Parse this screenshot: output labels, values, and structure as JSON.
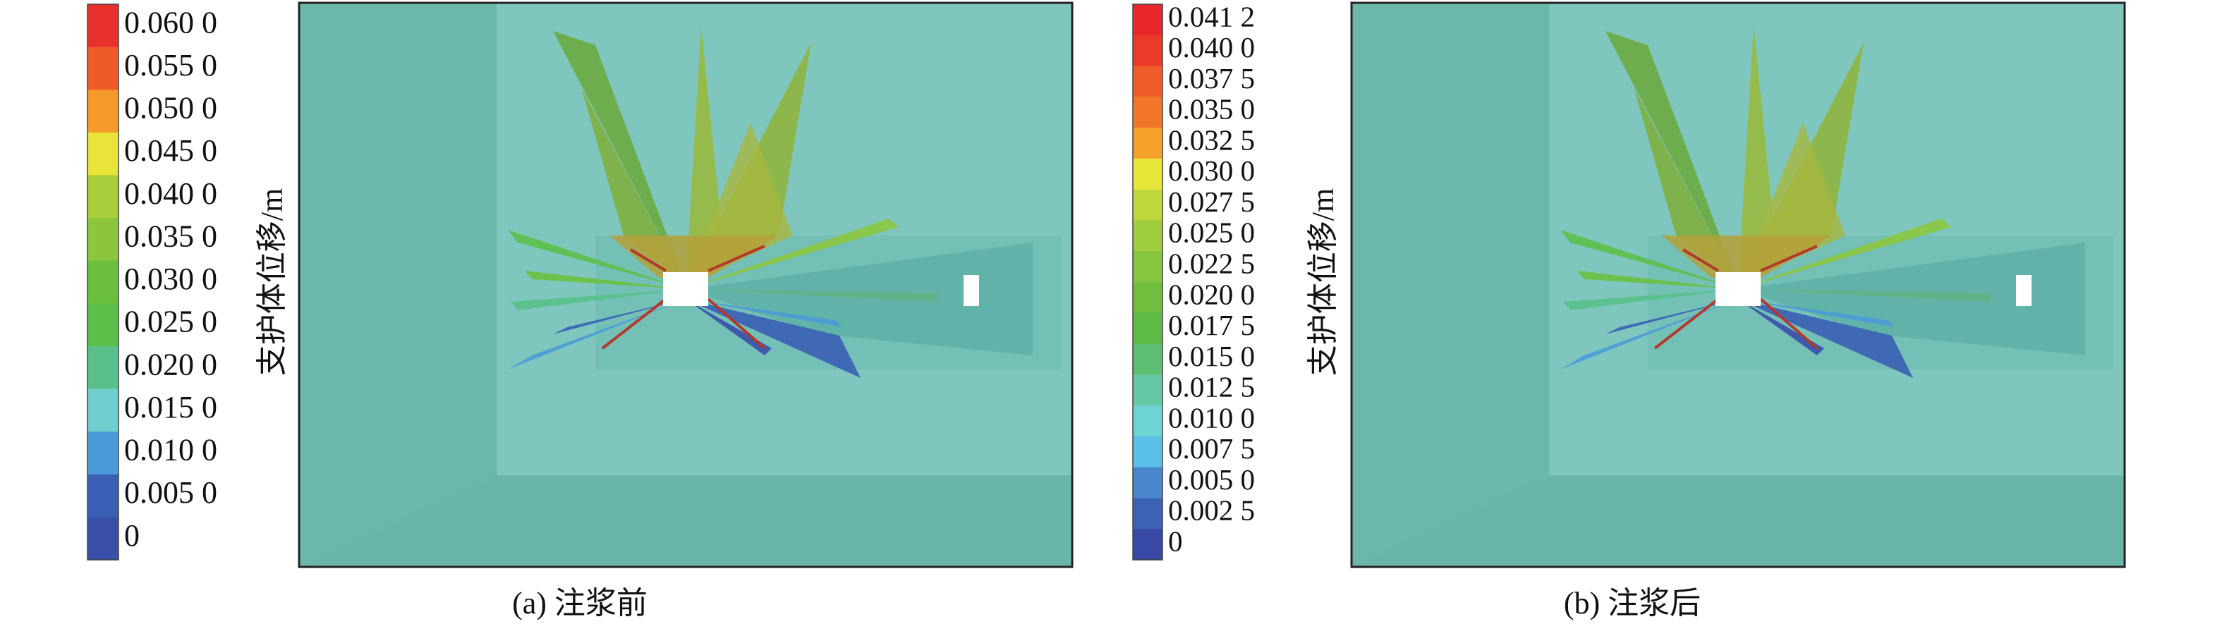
{
  "panels": [
    {
      "caption": "(a) 注浆前",
      "legend_title": "支护体位移/m",
      "legend": {
        "labels": [
          "0.060 0",
          "0.055 0",
          "0.050 0",
          "0.045 0",
          "0.040 0",
          "0.035 0",
          "0.030 0",
          "0.025 0",
          "0.020 0",
          "0.015 0",
          "0.010 0",
          "0.005 0",
          "0"
        ],
        "colors": [
          "#e8312d",
          "#ee5a2a",
          "#f39a2a",
          "#e8e43a",
          "#a8cf3a",
          "#8cc63e",
          "#6abf3e",
          "#5cbf4a",
          "#58c08a",
          "#6fcfcf",
          "#4b9ad8",
          "#3a5fb5",
          "#3a4fa8"
        ]
      }
    },
    {
      "caption": "(b) 注浆后",
      "legend_title": "支护体位移/m",
      "legend": {
        "labels": [
          "0.041 2",
          "0.040 0",
          "0.037 5",
          "0.035 0",
          "0.032 5",
          "0.030 0",
          "0.027 5",
          "0.025 0",
          "0.022 5",
          "0.020 0",
          "0.017 5",
          "0.015 0",
          "0.012 5",
          "0.010 0",
          "0.007 5",
          "0.005 0",
          "0.002 5",
          "0"
        ],
        "colors": [
          "#e8262b",
          "#ec3a2a",
          "#ef5e2a",
          "#f2762a",
          "#f5a02a",
          "#e8e638",
          "#bcd83a",
          "#9fcd3b",
          "#86c540",
          "#6fbe3e",
          "#5dbb45",
          "#5cbf72",
          "#66c9a6",
          "#6ed3d3",
          "#5bbfe8",
          "#4a86cc",
          "#3a62b5",
          "#3848a5"
        ]
      }
    }
  ]
}
